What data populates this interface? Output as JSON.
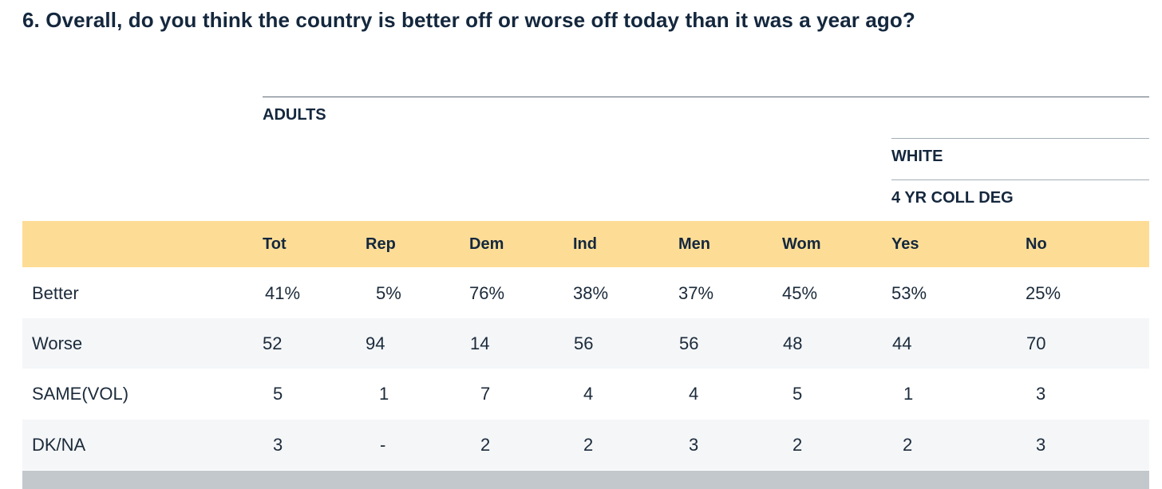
{
  "question": "6. Overall, do you think the country is better off or worse off today than it was a year ago?",
  "groups": {
    "adults": "ADULTS",
    "white": "WHITE",
    "coll_deg": "4 YR COLL DEG"
  },
  "columns": [
    "Tot",
    "Rep",
    "Dem",
    "Ind",
    "Men",
    "Wom",
    "Yes",
    "No"
  ],
  "rows": [
    {
      "label": "Better",
      "values": [
        "41%",
        "5%",
        "76%",
        "38%",
        "37%",
        "45%",
        "53%",
        "25%"
      ]
    },
    {
      "label": "Worse",
      "values": [
        "52",
        "94",
        "14",
        "56",
        "56",
        "48",
        "44",
        "70"
      ]
    },
    {
      "label": "SAME(VOL)",
      "values": [
        "5",
        "1",
        "7",
        "4",
        "4",
        "5",
        "1",
        "3"
      ]
    },
    {
      "label": "DK/NA",
      "values": [
        "3",
        "-",
        "2",
        "2",
        "3",
        "2",
        "2",
        "3"
      ]
    }
  ],
  "colors": {
    "header_band": "#fddd96",
    "alt_row": "#f4f6f8",
    "text": "#14273d"
  }
}
